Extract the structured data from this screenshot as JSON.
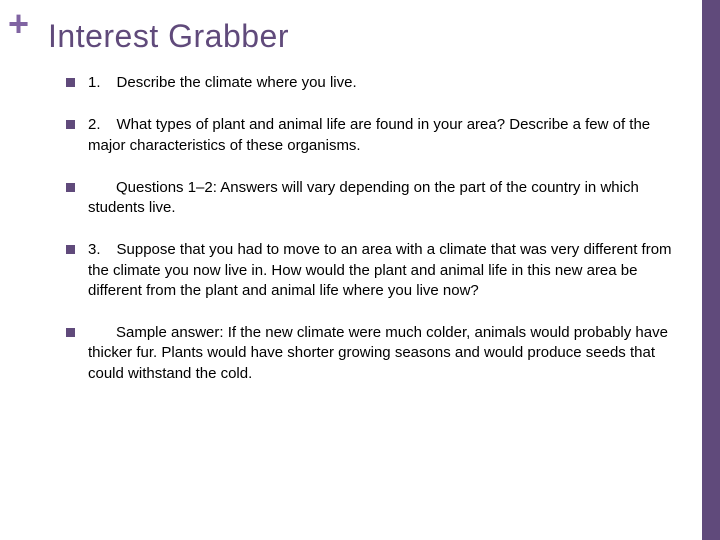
{
  "colors": {
    "accent": "#604a7b",
    "plus": "#8064a2",
    "text": "#000000",
    "background": "#ffffff"
  },
  "title": "Interest Grabber",
  "bullets": [
    {
      "num": "1.",
      "text": "Describe the climate where you live."
    },
    {
      "num": "2.",
      "text": "What types of plant and animal life are found in your area? Describe a few of the major characteristics of these organisms."
    },
    {
      "num": "",
      "text": "Questions 1–2: Answers will vary depending on the part of the country in which students live."
    },
    {
      "num": "3.",
      "text": "Suppose that you had to move to an area with a climate that was very different from the climate you now live in. How would the plant and animal life in this new area be different from the plant and animal life where you live now?"
    },
    {
      "num": "",
      "text": "Sample answer: If the new climate were much colder, animals would probably have thicker fur. Plants would have shorter growing seasons and would produce seeds that could withstand the cold."
    }
  ]
}
